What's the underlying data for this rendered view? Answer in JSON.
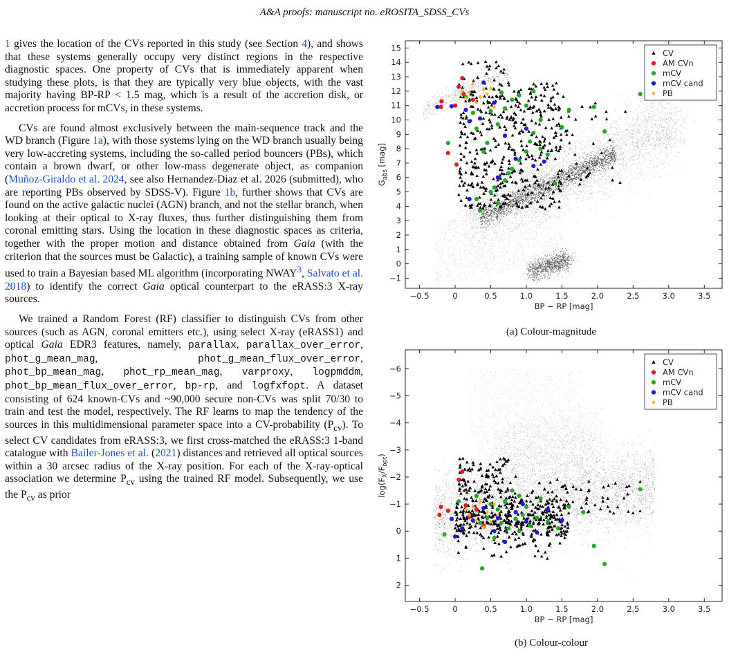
{
  "running_head": {
    "journal": "A&A proofs:",
    "rest": " manuscript no. eROSITA_SDSS_CVs"
  },
  "body_text": {
    "p1_a": "1",
    "p1_b": " gives the location of the CVs reported in this study (see Section ",
    "p1_c": "4",
    "p1_d": "), and shows that these systems generally occupy very distinct regions in the respective diagnostic spaces. One property of CVs that is immediately apparent when studying these plots, is that they are typically very blue objects, with the vast majority having BP-RP < 1.5 mag, which is a result of the accretion disk, or accretion process for mCVs, in these systems.",
    "p2_a": "CVs are found almost exclusively between the main-sequence track and the WD branch (Figure ",
    "p2_b": "1a",
    "p2_c": "), with those systems lying on the WD branch usually being very low-accreting systems, including the so-called period bouncers (PBs), which contain a brown dwarf, or other low-mass degenerate object, as companion (",
    "p2_d": "Muñoz-Giraldo et al. 2024",
    "p2_e": ", see also Hernandez-Diaz et al. 2026 (submitted), who are reporting PBs observed by SDSS-V). Figure ",
    "p2_f": "1b",
    "p2_g": ", further shows that CVs are found on the active galactic nuclei (AGN) branch, and not the stellar branch, when looking at their optical to X-ray fluxes, thus further distinguishing them from coronal emitting stars. Using the location in these diagnostic spaces as criteria, together with the proper motion and distance obtained from ",
    "p2_h": "Gaia",
    "p2_i": " (with the criterion that the sources must be Galactic), a training sample of known CVs were used to train a Bayesian based ML algorithm (incorporating NWAY",
    "p2_j": "3",
    "p2_k": ", ",
    "p2_l": "Salvato et al. 2018",
    "p2_m": ") to identify the correct ",
    "p2_n": "Gaia",
    "p2_o": " optical counterpart to the eRASS:3 X-ray sources.",
    "p3_a": "We trained a Random Forest (RF) classifier to distinguish CVs from other sources (such as AGN, coronal emitters etc.), using select X-ray (eRASS1) and optical ",
    "p3_b": "Gaia",
    "p3_c": " EDR3 features, namely, ",
    "p3_m1": "parallax",
    "p3_s1": ", ",
    "p3_m2": "parallax_over_error",
    "p3_s2": ", ",
    "p3_m3": "phot_g_mean_mag",
    "p3_s3": ", ",
    "p3_m4": "phot_g_mean_flux_over_error",
    "p3_s4": ", ",
    "p3_m5": "phot_bp_mean_mag",
    "p3_s5": ", ",
    "p3_m6": "phot_rp_mean_mag",
    "p3_s6": ", ",
    "p3_m7": "varproxy",
    "p3_s7": ", ",
    "p3_m8": "logpmddm",
    "p3_s8": ", ",
    "p3_m9": "phot_bp_mean_flux_over_error",
    "p3_s9": ", ",
    "p3_m10": "bp-rp",
    "p3_s10": ", and ",
    "p3_m11": "logfxfopt",
    "p3_d": ". A dataset consisting of 624 known-CVs and ~90,000 secure non-CVs was split 70/30 to train and test the model, respectively. The RF learns to map the tendency of the sources in this multidimensional parameter space into a CV-probability (P",
    "p3_e": "cv",
    "p3_f": "). To select CV candidates from eRASS:3, we first cross-matched the eRASS:3 1-band catalogue with ",
    "p3_g": "Bailer-Jones et al.",
    "p3_h": " (",
    "p3_i": "2021",
    "p3_j": ") distances and retrieved all optical sources within a 30 arcsec radius of the X-ray position. For each of the X-ray-optical association we determine P",
    "p3_k": "cv",
    "p3_l": " using the trained RF model. Subsequently, we use the P",
    "p3_n": "cv",
    "p3_o": " as prior"
  },
  "legend": {
    "cv": "CV",
    "amcvn": "AM CVn",
    "mcv": "mCV",
    "mcvcand": "mCV cand",
    "pb": "PB",
    "colors": {
      "cv": "#000000",
      "amcvn": "#e41a1c",
      "mcv": "#22aa22",
      "mcvcand": "#1a1ae6",
      "pb": "#f5b41a"
    }
  },
  "chart_data": [
    {
      "type": "scatter",
      "caption": "(a) Colour-magnitude",
      "xlabel": "BP − RP [mag]",
      "ylabel_main": "G",
      "ylabel_sub": "abs",
      "ylabel_unit": " [mag]",
      "xlim": [
        -0.7,
        3.75
      ],
      "ylim": [
        15.5,
        -1.7
      ],
      "y_inverted": true,
      "xticks": [
        -0.5,
        0,
        0.5,
        1.0,
        1.5,
        2.0,
        2.5,
        3.0,
        3.5
      ],
      "xtick_labels": [
        "−0.5",
        "0",
        "0.5",
        "1.0",
        "1.5",
        "2.0",
        "2.5",
        "3.0",
        "3.5"
      ],
      "yticks": [
        -1,
        0,
        1,
        2,
        3,
        4,
        5,
        6,
        7,
        8,
        9,
        10,
        11,
        12,
        13,
        14,
        15
      ],
      "ytick_labels": [
        "−1",
        "0",
        "1",
        "2",
        "3",
        "4",
        "5",
        "6",
        "7",
        "8",
        "9",
        "10",
        "11",
        "12",
        "13",
        "14",
        "15"
      ],
      "legend_position": "top-right",
      "series": [
        {
          "name": "AM CVn",
          "marker": "circle",
          "points": [
            [
              -0.2,
              10.9
            ],
            [
              -0.19,
              11.3
            ],
            [
              0.0,
              11.0
            ],
            [
              -0.1,
              7.7
            ],
            [
              0.02,
              6.9
            ],
            [
              0.05,
              12.3
            ],
            [
              0.1,
              12.9
            ],
            [
              0.12,
              11.8
            ],
            [
              0.25,
              11.4
            ]
          ]
        },
        {
          "name": "mCV",
          "marker": "circle",
          "points": [
            [
              0.35,
              3.7
            ],
            [
              0.3,
              4.5
            ],
            [
              0.5,
              5.0
            ],
            [
              0.55,
              5.3
            ],
            [
              0.6,
              4.2
            ],
            [
              0.7,
              5.8
            ],
            [
              0.75,
              6.3
            ],
            [
              0.8,
              6.6
            ],
            [
              0.9,
              7.2
            ],
            [
              1.0,
              7.8
            ],
            [
              1.05,
              8.5
            ],
            [
              1.1,
              9.1
            ],
            [
              1.2,
              8.0
            ],
            [
              1.3,
              7.6
            ],
            [
              0.4,
              7.8
            ],
            [
              0.45,
              8.4
            ],
            [
              0.3,
              9.4
            ],
            [
              0.25,
              10.5
            ],
            [
              0.5,
              10.6
            ],
            [
              0.6,
              9.7
            ],
            [
              0.7,
              10.8
            ],
            [
              0.8,
              11.4
            ],
            [
              0.9,
              11.7
            ],
            [
              1.0,
              11.0
            ],
            [
              1.2,
              10.0
            ],
            [
              1.5,
              9.5
            ],
            [
              1.6,
              10.7
            ],
            [
              1.95,
              10.9
            ],
            [
              2.1,
              9.2
            ],
            [
              2.6,
              11.8
            ],
            [
              1.4,
              5.6
            ],
            [
              -0.1,
              8.4
            ],
            [
              0.15,
              11.6
            ],
            [
              0.65,
              11.9
            ],
            [
              1.1,
              12.0
            ]
          ]
        },
        {
          "name": "mCV cand",
          "marker": "circle",
          "points": [
            [
              0.2,
              4.5
            ],
            [
              0.6,
              6.0
            ],
            [
              0.85,
              7.3
            ],
            [
              1.1,
              6.8
            ],
            [
              1.25,
              7.1
            ],
            [
              0.2,
              9.9
            ],
            [
              0.35,
              10.1
            ],
            [
              -0.05,
              10.95
            ],
            [
              0.15,
              10.7
            ],
            [
              0.55,
              11.2
            ],
            [
              0.7,
              8.9
            ],
            [
              1.0,
              9.4
            ],
            [
              0.4,
              12.6
            ],
            [
              -0.25,
              10.9
            ]
          ]
        },
        {
          "name": "PB",
          "marker": "diamond",
          "points": [
            [
              0.3,
              11.2
            ],
            [
              0.35,
              11.6
            ],
            [
              0.4,
              12.1
            ],
            [
              0.45,
              11.8
            ],
            [
              0.2,
              11.9
            ],
            [
              0.5,
              12.2
            ],
            [
              0.15,
              11.5
            ],
            [
              0.55,
              10.9
            ],
            [
              0.25,
              12.5
            ],
            [
              0.1,
              12.0
            ]
          ]
        }
      ]
    },
    {
      "type": "scatter",
      "caption": "(b) Colour-colour",
      "xlabel": "BP − RP [mag]",
      "ylabel_main": "log(F",
      "ylabel_sub1": "X",
      "ylabel_mid": "/F",
      "ylabel_sub2": "opt",
      "ylabel_end": ")",
      "xlim": [
        -0.7,
        3.75
      ],
      "ylim": [
        -6.7,
        2.6
      ],
      "xticks": [
        -0.5,
        0,
        0.5,
        1.0,
        1.5,
        2.0,
        2.5,
        3.0,
        3.5
      ],
      "xtick_labels": [
        "−0.5",
        "0",
        "0.5",
        "1.0",
        "1.5",
        "2.0",
        "2.5",
        "3.0",
        "3.5"
      ],
      "yticks": [
        -6,
        -5,
        -4,
        -3,
        -2,
        -1,
        0,
        1,
        2
      ],
      "ytick_labels": [
        "−6",
        "−5",
        "−4",
        "−3",
        "−2",
        "−1",
        "0",
        "1",
        "2"
      ],
      "legend_position": "top-right",
      "series": [
        {
          "name": "AM CVn",
          "marker": "circle",
          "points": [
            [
              -0.22,
              -0.6
            ],
            [
              -0.2,
              -0.9
            ],
            [
              -0.1,
              -0.75
            ],
            [
              0.05,
              -1.9
            ],
            [
              0.1,
              -2.2
            ],
            [
              0.15,
              -0.95
            ],
            [
              0.3,
              -0.8
            ],
            [
              0.2,
              -0.55
            ],
            [
              0.4,
              -0.2
            ]
          ]
        },
        {
          "name": "mCV",
          "marker": "circle",
          "points": [
            [
              0.38,
              1.38
            ],
            [
              0.55,
              0.25
            ],
            [
              0.65,
              -0.3
            ],
            [
              0.75,
              -0.1
            ],
            [
              0.85,
              -0.45
            ],
            [
              0.95,
              -0.6
            ],
            [
              1.05,
              -0.2
            ],
            [
              1.15,
              -0.5
            ],
            [
              1.3,
              -0.35
            ],
            [
              1.45,
              -0.1
            ],
            [
              0.6,
              -0.8
            ],
            [
              0.7,
              -1.1
            ],
            [
              0.8,
              -1.5
            ],
            [
              0.5,
              -1.0
            ],
            [
              0.45,
              -0.5
            ],
            [
              0.35,
              -0.3
            ],
            [
              1.6,
              -0.9
            ],
            [
              1.8,
              -0.7
            ],
            [
              1.95,
              0.55
            ],
            [
              2.1,
              1.22
            ],
            [
              2.6,
              -1.55
            ],
            [
              1.2,
              -1.2
            ],
            [
              1.0,
              -0.9
            ],
            [
              0.9,
              -1.3
            ],
            [
              -0.15,
              0.12
            ],
            [
              0.05,
              -1.1
            ],
            [
              0.3,
              -1.3
            ],
            [
              0.9,
              0.0
            ]
          ]
        },
        {
          "name": "mCV cand",
          "marker": "circle",
          "points": [
            [
              0.0,
              0.2
            ],
            [
              0.1,
              -0.1
            ],
            [
              0.25,
              -0.4
            ],
            [
              0.55,
              0.0
            ],
            [
              0.6,
              -0.5
            ],
            [
              0.85,
              -0.7
            ],
            [
              1.0,
              -0.35
            ],
            [
              1.15,
              0.05
            ],
            [
              1.3,
              -0.8
            ],
            [
              1.5,
              -0.4
            ],
            [
              0.7,
              0.4
            ],
            [
              0.4,
              -0.85
            ],
            [
              -0.05,
              -0.45
            ],
            [
              0.95,
              -1.0
            ]
          ]
        },
        {
          "name": "PB",
          "marker": "diamond",
          "points": [
            [
              0.2,
              -0.6
            ],
            [
              0.25,
              -0.9
            ],
            [
              0.3,
              -0.4
            ],
            [
              0.35,
              -1.1
            ],
            [
              0.45,
              -0.7
            ],
            [
              0.5,
              -0.35
            ],
            [
              0.15,
              -0.8
            ],
            [
              0.55,
              -1.0
            ],
            [
              0.4,
              -0.15
            ],
            [
              0.6,
              -0.6
            ]
          ]
        }
      ]
    }
  ]
}
